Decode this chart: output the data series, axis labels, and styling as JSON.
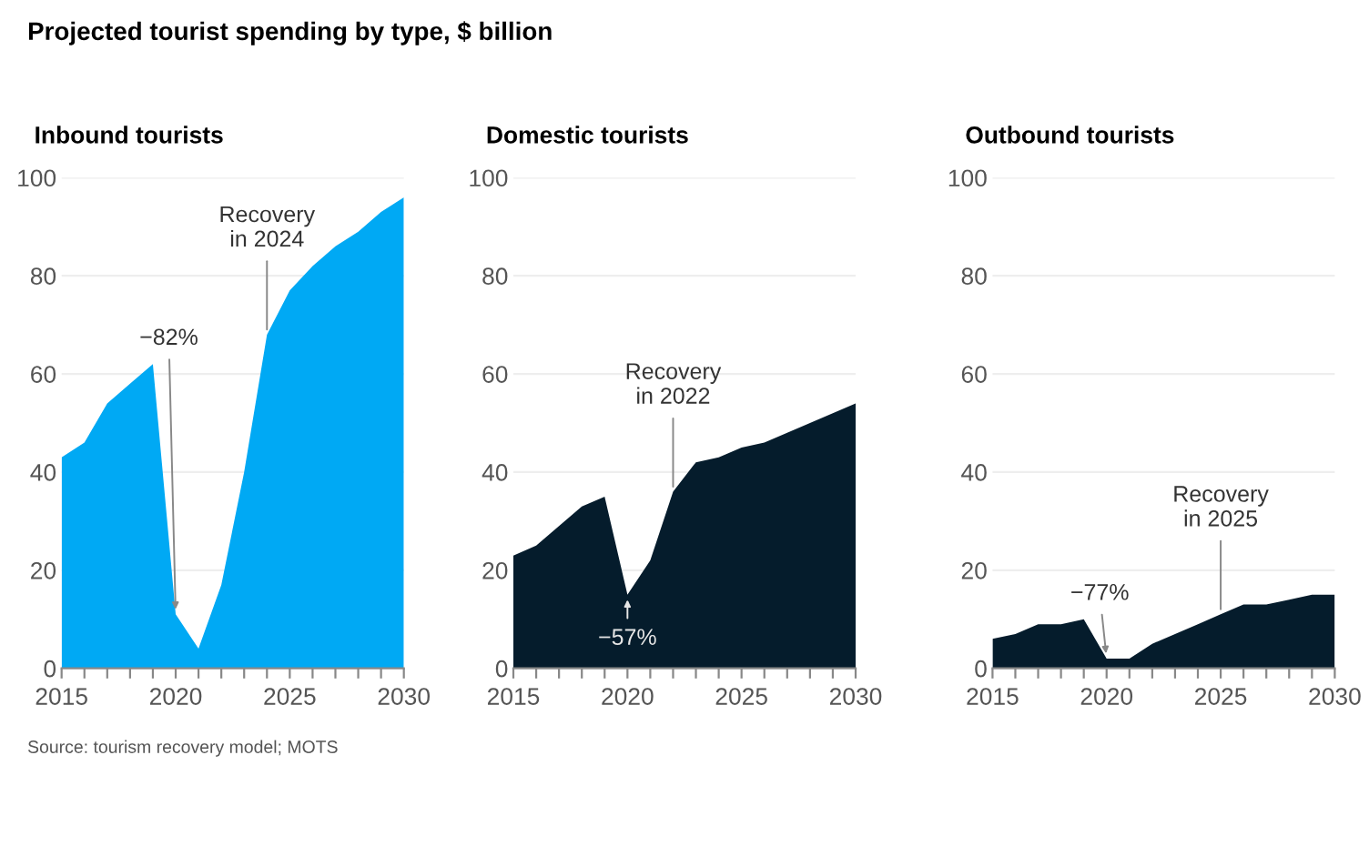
{
  "chart_data": [
    {
      "type": "area",
      "title": "Projected tourist spending by type, $ billion",
      "subtitle": "Inbound tourists",
      "x": [
        2015,
        2016,
        2017,
        2018,
        2019,
        2020,
        2021,
        2022,
        2023,
        2024,
        2025,
        2026,
        2027,
        2028,
        2029,
        2030
      ],
      "series": [
        {
          "color": "#00a9f4",
          "values": [
            43,
            46,
            54,
            58,
            62,
            11,
            4,
            17,
            40,
            68,
            77,
            82,
            86,
            89,
            93,
            96
          ]
        }
      ],
      "xlim": [
        2015,
        2030
      ],
      "ylim": [
        0,
        100
      ],
      "yticks": [
        0,
        20,
        40,
        60,
        80,
        100
      ],
      "xticks": [
        2015,
        {
          "value": 2016,
          "label": null
        },
        {
          "value": 2017,
          "label": null
        },
        {
          "value": 2018,
          "label": null
        },
        {
          "value": 2019,
          "label": null
        },
        2020,
        {
          "value": 2021,
          "label": null
        },
        {
          "value": 2022,
          "label": null
        },
        {
          "value": 2023,
          "label": null
        },
        {
          "value": 2024,
          "label": null
        },
        2025,
        {
          "value": 2026,
          "label": null
        },
        {
          "value": 2027,
          "label": null
        },
        {
          "value": 2028,
          "label": null
        },
        {
          "value": 2029,
          "label": null
        },
        2030
      ],
      "grid": "y",
      "annotations": [
        {
          "text": "−82%",
          "x": 2020,
          "y": 11
        },
        {
          "text": "Recovery\nin 2024",
          "x": 2024,
          "y": 68
        },
        "Source: tourism recovery model; MOTS"
      ]
    },
    {
      "type": "area",
      "subtitle": "Domestic tourists",
      "x": [
        2015,
        2016,
        2017,
        2018,
        2019,
        2020,
        2021,
        2022,
        2023,
        2024,
        2025,
        2026,
        2027,
        2028,
        2029,
        2030
      ],
      "series": [
        {
          "color": "#051c2c",
          "values": [
            23,
            25,
            29,
            33,
            35,
            15,
            22,
            36,
            42,
            43,
            45,
            46,
            48,
            50,
            52,
            54
          ]
        }
      ],
      "xlim": [
        2015,
        2030
      ],
      "ylim": [
        0,
        100
      ],
      "yticks": [
        0,
        20,
        40,
        60,
        80,
        100
      ],
      "xticks": [
        2015,
        {
          "value": 2016,
          "label": null
        },
        {
          "value": 2017,
          "label": null
        },
        {
          "value": 2018,
          "label": null
        },
        {
          "value": 2019,
          "label": null
        },
        2020,
        {
          "value": 2021,
          "label": null
        },
        {
          "value": 2022,
          "label": null
        },
        {
          "value": 2023,
          "label": null
        },
        {
          "value": 2024,
          "label": null
        },
        2025,
        {
          "value": 2026,
          "label": null
        },
        {
          "value": 2027,
          "label": null
        },
        {
          "value": 2028,
          "label": null
        },
        {
          "value": 2029,
          "label": null
        },
        2030
      ],
      "grid": "y",
      "annotations": [
        {
          "text": "−57%",
          "x": 2020,
          "y": 15
        },
        {
          "text": "Recovery\nin 2022",
          "x": 2022,
          "y": 36
        }
      ]
    },
    {
      "type": "area",
      "subtitle": "Outbound tourists",
      "x": [
        2015,
        2016,
        2017,
        2018,
        2019,
        2020,
        2021,
        2022,
        2023,
        2024,
        2025,
        2026,
        2027,
        2028,
        2029,
        2030
      ],
      "series": [
        {
          "color": "#051c2c",
          "values": [
            6,
            7,
            9,
            9,
            10,
            2,
            2,
            5,
            7,
            9,
            11,
            13,
            13,
            14,
            15,
            15
          ]
        }
      ],
      "xlim": [
        2015,
        2030
      ],
      "ylim": [
        0,
        100
      ],
      "yticks": [
        0,
        20,
        40,
        60,
        80,
        100
      ],
      "xticks": [
        2015,
        {
          "value": 2016,
          "label": null
        },
        {
          "value": 2017,
          "label": null
        },
        {
          "value": 2018,
          "label": null
        },
        {
          "value": 2019,
          "label": null
        },
        2020,
        {
          "value": 2021,
          "label": null
        },
        {
          "value": 2022,
          "label": null
        },
        {
          "value": 2023,
          "label": null
        },
        {
          "value": 2024,
          "label": null
        },
        2025,
        {
          "value": 2026,
          "label": null
        },
        {
          "value": 2027,
          "label": null
        },
        {
          "value": 2028,
          "label": null
        },
        {
          "value": 2029,
          "label": null
        },
        2030
      ],
      "grid": "y",
      "annotations": [
        {
          "text": "−77%",
          "x": 2020,
          "y": 2
        },
        {
          "text": "Recovery\nin 2025",
          "x": 2025,
          "y": 11
        }
      ]
    }
  ]
}
